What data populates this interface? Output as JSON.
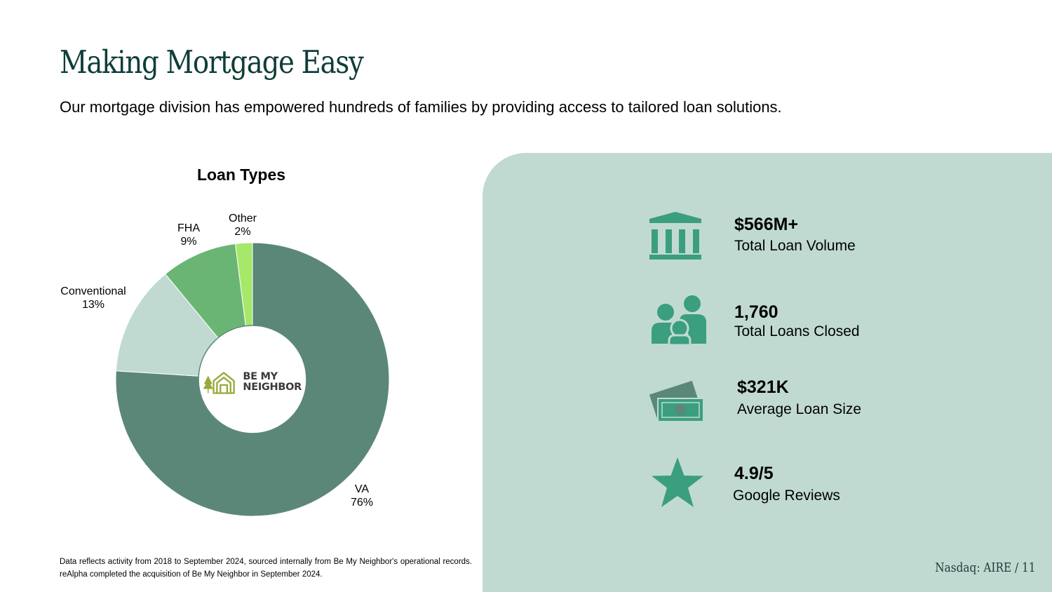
{
  "header": {
    "title": "Making Mortgage Easy",
    "subtitle": "Our mortgage division has empowered hundreds of families by providing access to tailored loan solutions."
  },
  "chart_data": {
    "type": "pie",
    "variant": "donut",
    "title": "Loan Types",
    "categories": [
      "VA",
      "Conventional",
      "FHA",
      "Other"
    ],
    "values": [
      76,
      13,
      9,
      2
    ],
    "labels": [
      "76%",
      "13%",
      "9%",
      "2%"
    ],
    "colors": [
      "#5b8779",
      "#c0dad2",
      "#6bb574",
      "#a6e86a"
    ],
    "legend": "none"
  },
  "logo": {
    "text_line1": "BE MY",
    "text_line2": "NEIGHBOR",
    "color": "#9aa83a"
  },
  "stats": [
    {
      "value": "$566M+",
      "label": "Total Loan Volume",
      "icon": "bank-icon"
    },
    {
      "value": "1,760",
      "label": "Total Loans Closed",
      "icon": "family-icon"
    },
    {
      "value": "$321K",
      "label": "Average Loan Size",
      "icon": "cash-icon"
    },
    {
      "value": "4.9/5",
      "label": "Google Reviews",
      "icon": "star-icon"
    }
  ],
  "footnote": "Data reflects activity from 2018 to September 2024, sourced internally from Be My Neighbor's operational records. reAlpha completed the acquisition of Be My Neighbor in September 2024.",
  "page_ref": "Nasdaq: AIRE / 11",
  "colors": {
    "title": "#0f3d3a",
    "panel": "#c0dad2",
    "icon": "#3a9e7f"
  }
}
